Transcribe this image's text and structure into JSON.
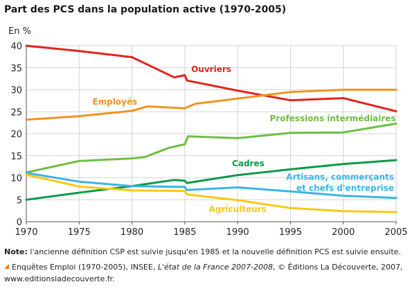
{
  "title": "Part des PCS dans la population active (1970-2005)",
  "note": {
    "label": "Note",
    "text": "l'ancienne définition CSP est suivie jusqu'en 1985 et la nouvelle définition PCS est suivie ensuite."
  },
  "source": {
    "part1": "Enquêtes Emploi (1970-2005), INSEE, ",
    "book": "L'état de la France 2007-2008",
    "part2": ", © Éditions La Découverte, 2007,",
    "url": "www.editionsladecouverte.fr."
  },
  "chart_data": {
    "type": "line",
    "ylabel": "En %",
    "xlabel": "",
    "xlim": [
      1970,
      2005
    ],
    "ylim": [
      0,
      40
    ],
    "x_ticks": [
      1970,
      1975,
      1980,
      1985,
      1990,
      1995,
      2000,
      2005
    ],
    "y_ticks": [
      0,
      5,
      10,
      15,
      20,
      25,
      30,
      35,
      40
    ],
    "grid": true,
    "series": [
      {
        "name": "Ouvriers",
        "color": "#e2231a",
        "points": [
          [
            1970,
            40
          ],
          [
            1975,
            38.8
          ],
          [
            1980,
            37.4
          ],
          [
            1984,
            32.8
          ],
          [
            1985,
            33.3
          ],
          [
            1985.2,
            32.1
          ],
          [
            1990,
            29.8
          ],
          [
            1995,
            27.6
          ],
          [
            2000,
            28.1
          ],
          [
            2005,
            25.1
          ]
        ]
      },
      {
        "name": "Employés",
        "color": "#f39220",
        "points": [
          [
            1970,
            23.2
          ],
          [
            1975,
            24.0
          ],
          [
            1980,
            25.2
          ],
          [
            1981.5,
            26.2
          ],
          [
            1985,
            25.8
          ],
          [
            1986,
            26.8
          ],
          [
            1990,
            28.0
          ],
          [
            1995,
            29.5
          ],
          [
            2000,
            30.0
          ],
          [
            2005,
            30.0
          ]
        ]
      },
      {
        "name": "Professions intermédiaires",
        "color": "#6ebe44",
        "points": [
          [
            1970,
            11.2
          ],
          [
            1975,
            13.8
          ],
          [
            1980,
            14.4
          ],
          [
            1981.2,
            14.7
          ],
          [
            1983.5,
            16.8
          ],
          [
            1985,
            17.6
          ],
          [
            1985.3,
            19.4
          ],
          [
            1990,
            19.0
          ],
          [
            1995,
            20.2
          ],
          [
            2000,
            20.3
          ],
          [
            2005,
            22.3
          ]
        ]
      },
      {
        "name": "Cadres",
        "color": "#0a9a48",
        "points": [
          [
            1970,
            5.0
          ],
          [
            1975,
            6.6
          ],
          [
            1980,
            8.1
          ],
          [
            1984,
            9.5
          ],
          [
            1985,
            9.3
          ],
          [
            1985.2,
            8.8
          ],
          [
            1990,
            10.6
          ],
          [
            1995,
            11.9
          ],
          [
            2000,
            13.1
          ],
          [
            2005,
            14.0
          ]
        ]
      },
      {
        "name": "Artisans, commerçants et chefs d'entreprise",
        "color": "#3ab4e6",
        "points": [
          [
            1970,
            11.1
          ],
          [
            1975,
            9.1
          ],
          [
            1980,
            8.1
          ],
          [
            1985,
            7.9
          ],
          [
            1985.2,
            7.2
          ],
          [
            1990,
            7.8
          ],
          [
            1995,
            6.9
          ],
          [
            2000,
            5.9
          ],
          [
            2005,
            5.4
          ]
        ]
      },
      {
        "name": "Agriculteurs",
        "color": "#f6c915",
        "points": [
          [
            1970,
            10.7
          ],
          [
            1975,
            8.0
          ],
          [
            1980,
            7.1
          ],
          [
            1985,
            7.0
          ],
          [
            1985.2,
            6.2
          ],
          [
            1990,
            4.9
          ],
          [
            1995,
            3.1
          ],
          [
            2000,
            2.4
          ],
          [
            2005,
            2.2
          ]
        ]
      }
    ],
    "labels": [
      {
        "series": 0,
        "lines": [
          "Ouvriers"
        ]
      },
      {
        "series": 1,
        "lines": [
          "Employés"
        ]
      },
      {
        "series": 2,
        "lines": [
          "Professions intermédiaires"
        ]
      },
      {
        "series": 3,
        "lines": [
          "Cadres"
        ]
      },
      {
        "series": 4,
        "lines": [
          "Artisans, commerçants",
          "et chefs d'entreprise"
        ]
      },
      {
        "series": 5,
        "lines": [
          "Agriculteurs"
        ]
      }
    ]
  }
}
